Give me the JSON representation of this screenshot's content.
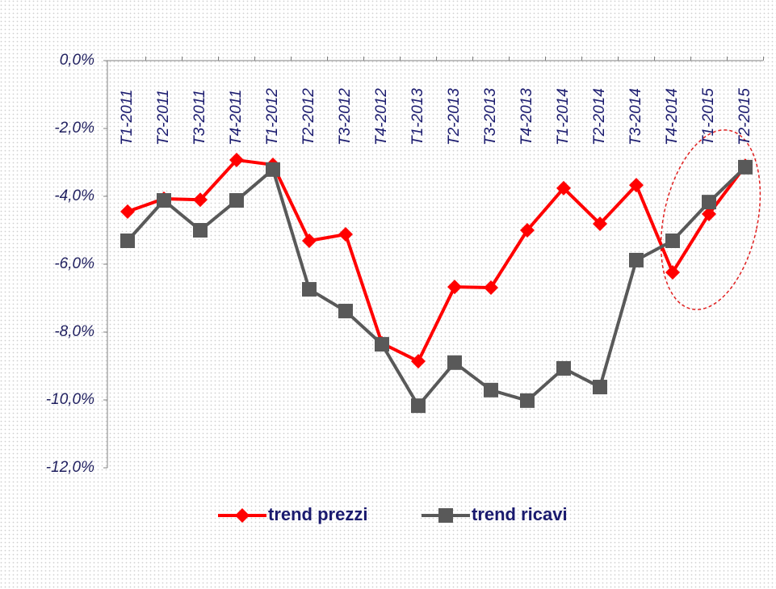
{
  "chart_data": {
    "type": "line",
    "categories": [
      "T1-2011",
      "T2-2011",
      "T3-2011",
      "T4-2011",
      "T1-2012",
      "T2-2012",
      "T3-2012",
      "T4-2012",
      "T1-2013",
      "T2-2013",
      "T3-2013",
      "T4-2013",
      "T1-2014",
      "T2-2014",
      "T3-2014",
      "T4-2014",
      "T1-2015",
      "T2-2015"
    ],
    "series": [
      {
        "name": "trend prezzi",
        "color": "#ff0000",
        "marker": "diamond",
        "values": [
          -4.45,
          -4.07,
          -4.1,
          -2.93,
          -3.07,
          -5.31,
          -5.12,
          -8.33,
          -8.86,
          -6.67,
          -6.69,
          -5.0,
          -3.76,
          -4.81,
          -3.67,
          -6.24,
          -4.52,
          -3.1
        ]
      },
      {
        "name": "trend ricavi",
        "color": "#595959",
        "marker": "square",
        "values": [
          -5.31,
          -4.12,
          -5.0,
          -4.12,
          -3.21,
          -6.74,
          -7.38,
          -8.36,
          -10.17,
          -8.9,
          -9.71,
          -10.02,
          -9.07,
          -9.62,
          -5.88,
          -5.31,
          -4.17,
          -3.14
        ]
      }
    ],
    "ylim": [
      -12,
      0
    ],
    "yticks": [
      {
        "value": 0,
        "label": "0,0%"
      },
      {
        "value": -2,
        "label": "-2,0%"
      },
      {
        "value": -4,
        "label": "-4,0%"
      },
      {
        "value": -6,
        "label": "-6,0%"
      },
      {
        "value": -8,
        "label": "-8,0%"
      },
      {
        "value": -10,
        "label": "-10,0%"
      },
      {
        "value": -12,
        "label": "-12,0%"
      }
    ],
    "legend": "bottom"
  }
}
